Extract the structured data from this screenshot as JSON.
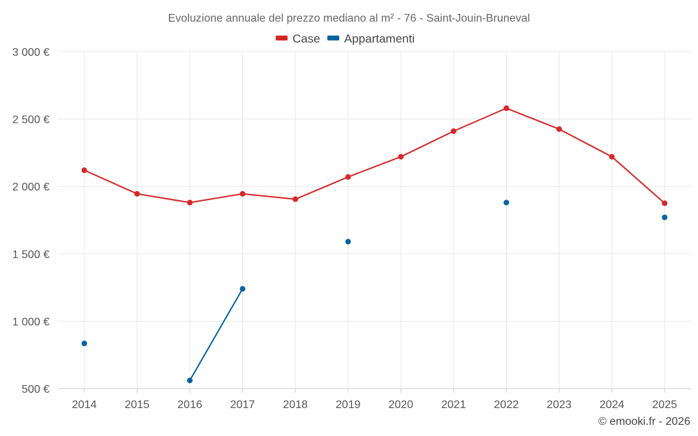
{
  "chart_data": {
    "type": "line",
    "title": "Evoluzione annuale del prezzo mediano al m² - 76 - Saint-Jouin-Bruneval",
    "categories": [
      "2014",
      "2015",
      "2016",
      "2017",
      "2018",
      "2019",
      "2020",
      "2021",
      "2022",
      "2023",
      "2024",
      "2025"
    ],
    "series": [
      {
        "name": "Case",
        "color": "#d62728",
        "values": [
          2120,
          1945,
          1880,
          1945,
          1905,
          2070,
          2220,
          2410,
          2580,
          2425,
          2220,
          1875
        ]
      },
      {
        "name": "Appartamenti",
        "color": "#0a64a0",
        "values": [
          835,
          null,
          560,
          1240,
          null,
          1590,
          null,
          null,
          1880,
          null,
          null,
          1770
        ]
      }
    ],
    "ylim": [
      500,
      3000
    ],
    "yticks": [
      500,
      1000,
      1500,
      2000,
      2500,
      3000
    ],
    "ytick_labels": [
      "500 €",
      "1 000 €",
      "1 500 €",
      "2 000 €",
      "2 500 €",
      "3 000 €"
    ],
    "xlabel": "",
    "ylabel": "",
    "grid": true,
    "legend_position": "top-center"
  },
  "credit": "© emooki.fr - 2026"
}
